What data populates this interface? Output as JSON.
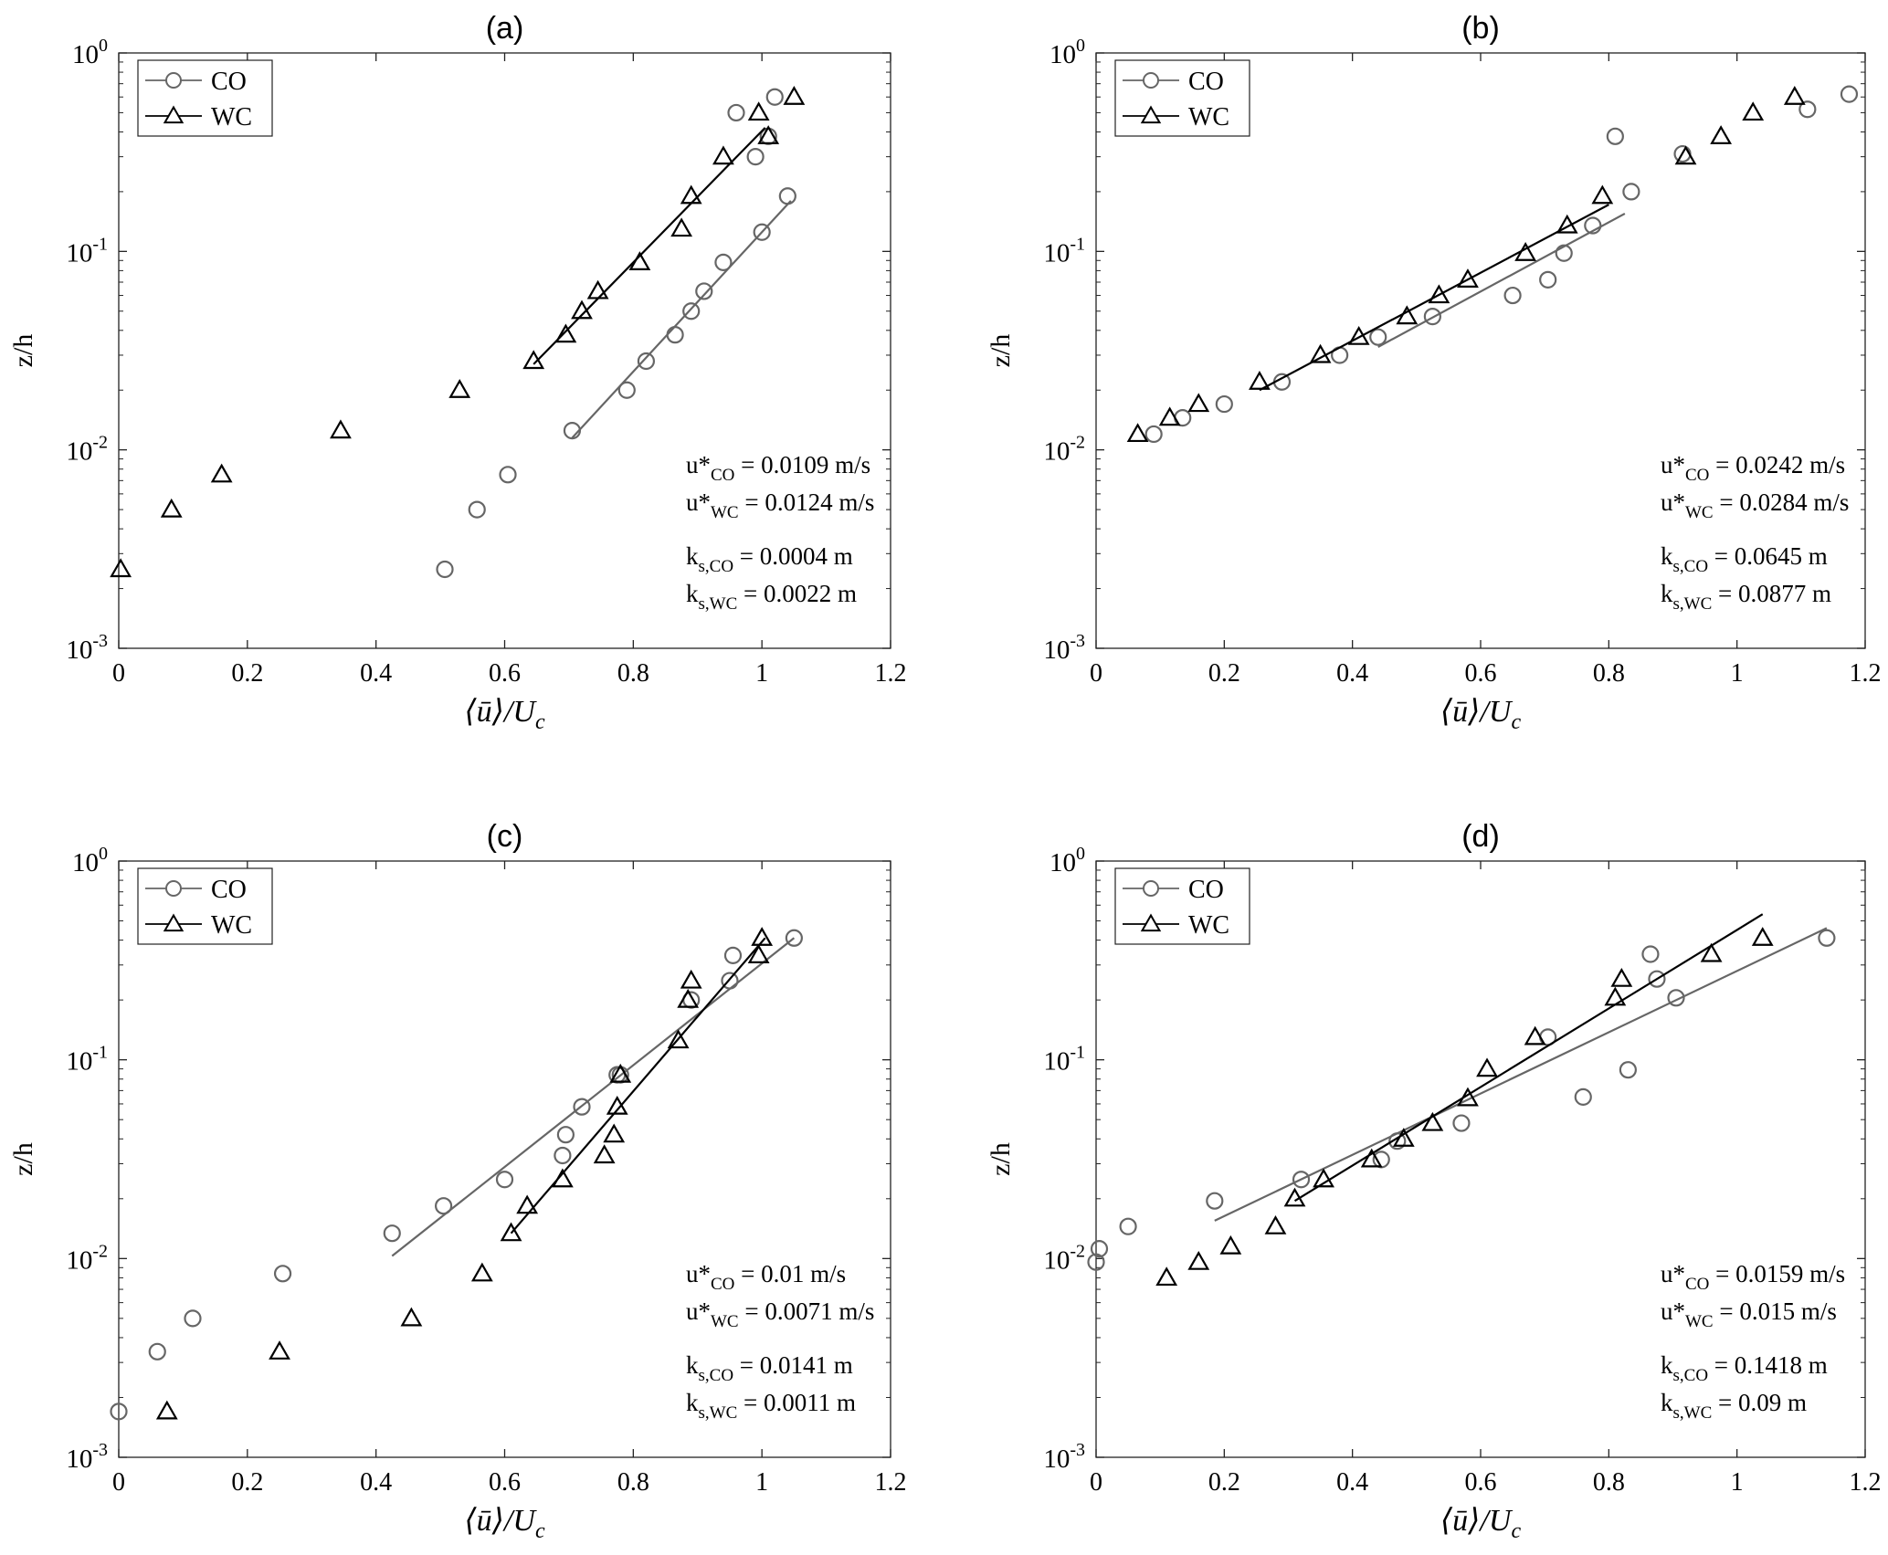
{
  "figure": {
    "panels_label": "four-panel velocity profile figure"
  },
  "chart_data": [
    {
      "type": "scatter",
      "panel_label": "(a)",
      "xlabel_pre": "⟨ū⟩/U",
      "xlabel_sub": "c",
      "ylabel": "z/h",
      "xlim": [
        0,
        1.2
      ],
      "ylim": [
        0.001,
        1
      ],
      "yscale": "log",
      "xticks": [
        "0",
        "0.2",
        "0.4",
        "0.6",
        "0.8",
        "1",
        "1.2"
      ],
      "grid": false,
      "legend_position": "top-left",
      "series": [
        {
          "name": "CO",
          "marker": "circle",
          "color": "#666666",
          "x": [
            0.507,
            0.557,
            0.605,
            0.705,
            0.79,
            0.82,
            0.865,
            0.89,
            0.91,
            0.94,
            0.96,
            0.99,
            1.0,
            1.01,
            1.02,
            1.04
          ],
          "y": [
            0.0025,
            0.005,
            0.0075,
            0.0125,
            0.02,
            0.028,
            0.038,
            0.05,
            0.063,
            0.088,
            0.5,
            0.3,
            0.125,
            0.38,
            0.6,
            0.19
          ],
          "fit": {
            "x": [
              0.705,
              1.045
            ],
            "y": [
              0.0115,
              0.18
            ]
          }
        },
        {
          "name": "WC",
          "marker": "triangle",
          "color": "#000000",
          "x": [
            0.003,
            0.082,
            0.16,
            0.345,
            0.53,
            0.645,
            0.695,
            0.72,
            0.745,
            0.81,
            0.875,
            0.89,
            0.94,
            0.995,
            1.01,
            1.05
          ],
          "y": [
            0.0025,
            0.005,
            0.0075,
            0.0125,
            0.02,
            0.028,
            0.038,
            0.05,
            0.063,
            0.088,
            0.13,
            0.19,
            0.3,
            0.5,
            0.38,
            0.6
          ],
          "fit": {
            "x": [
              0.645,
              1.005
            ],
            "y": [
              0.027,
              0.42
            ]
          }
        }
      ],
      "annotations": [
        {
          "pre": "u*",
          "sub": "CO",
          "post": " = 0.0109 m/s"
        },
        {
          "pre": "u*",
          "sub": "WC",
          "post": " = 0.0124 m/s"
        },
        {
          "pre": "k",
          "sub": "s,CO",
          "post": " = 0.0004 m"
        },
        {
          "pre": "k",
          "sub": "s,WC",
          "post": " = 0.0022 m"
        }
      ]
    },
    {
      "type": "scatter",
      "panel_label": "(b)",
      "xlabel_pre": "⟨ū⟩/U",
      "xlabel_sub": "c",
      "ylabel": "z/h",
      "xlim": [
        0,
        1.2
      ],
      "ylim": [
        0.001,
        1
      ],
      "yscale": "log",
      "xticks": [
        "0",
        "0.2",
        "0.4",
        "0.6",
        "0.8",
        "1",
        "1.2"
      ],
      "grid": false,
      "legend_position": "top-left",
      "series": [
        {
          "name": "CO",
          "marker": "circle",
          "color": "#666666",
          "x": [
            0.09,
            0.135,
            0.2,
            0.29,
            0.38,
            0.44,
            0.525,
            0.65,
            0.705,
            0.73,
            0.775,
            0.81,
            0.835,
            0.915,
            1.11,
            1.175
          ],
          "y": [
            0.012,
            0.0145,
            0.017,
            0.022,
            0.03,
            0.037,
            0.047,
            0.06,
            0.072,
            0.098,
            0.135,
            0.38,
            0.2,
            0.31,
            0.52,
            0.62
          ],
          "fit": {
            "x": [
              0.44,
              0.825
            ],
            "y": [
              0.033,
              0.155
            ]
          }
        },
        {
          "name": "WC",
          "marker": "triangle",
          "color": "#000000",
          "x": [
            0.065,
            0.115,
            0.16,
            0.255,
            0.35,
            0.41,
            0.485,
            0.535,
            0.58,
            0.67,
            0.735,
            0.79,
            0.92,
            0.975,
            1.025,
            1.09
          ],
          "y": [
            0.012,
            0.0145,
            0.017,
            0.022,
            0.03,
            0.037,
            0.047,
            0.06,
            0.072,
            0.098,
            0.135,
            0.19,
            0.3,
            0.38,
            0.5,
            0.6
          ],
          "fit": {
            "x": [
              0.255,
              0.8
            ],
            "y": [
              0.02,
              0.172
            ]
          }
        }
      ],
      "annotations": [
        {
          "pre": "u*",
          "sub": "CO",
          "post": " = 0.0242 m/s"
        },
        {
          "pre": "u*",
          "sub": "WC",
          "post": " = 0.0284 m/s"
        },
        {
          "pre": "k",
          "sub": "s,CO",
          "post": " = 0.0645 m"
        },
        {
          "pre": "k",
          "sub": "s,WC",
          "post": " = 0.0877 m"
        }
      ]
    },
    {
      "type": "scatter",
      "panel_label": "(c)",
      "xlabel_pre": "⟨ū⟩/U",
      "xlabel_sub": "c",
      "ylabel": "z/h",
      "xlim": [
        0,
        1.2
      ],
      "ylim": [
        0.001,
        1
      ],
      "yscale": "log",
      "xticks": [
        "0",
        "0.2",
        "0.4",
        "0.6",
        "0.8",
        "1",
        "1.2"
      ],
      "grid": false,
      "legend_position": "top-left",
      "series": [
        {
          "name": "CO",
          "marker": "circle",
          "color": "#666666",
          "x": [
            0.0,
            0.06,
            0.115,
            0.255,
            0.425,
            0.505,
            0.6,
            0.69,
            0.695,
            0.72,
            0.775,
            0.78,
            0.89,
            0.95,
            0.955,
            1.05
          ],
          "y": [
            0.0017,
            0.0034,
            0.005,
            0.0084,
            0.0134,
            0.0184,
            0.025,
            0.033,
            0.042,
            0.058,
            0.084,
            0.084,
            0.2,
            0.25,
            0.335,
            0.41
          ],
          "fit": {
            "x": [
              0.425,
              1.05
            ],
            "y": [
              0.0103,
              0.41
            ]
          }
        },
        {
          "name": "WC",
          "marker": "triangle",
          "color": "#000000",
          "x": [
            0.075,
            0.25,
            0.455,
            0.565,
            0.61,
            0.635,
            0.69,
            0.755,
            0.77,
            0.775,
            0.78,
            0.87,
            0.885,
            0.89,
            0.995,
            1.0
          ],
          "y": [
            0.0017,
            0.0034,
            0.005,
            0.0084,
            0.0134,
            0.0184,
            0.025,
            0.033,
            0.042,
            0.058,
            0.084,
            0.125,
            0.2,
            0.25,
            0.335,
            0.41
          ],
          "fit": {
            "x": [
              0.61,
              1.005
            ],
            "y": [
              0.0134,
              0.41
            ]
          }
        }
      ],
      "annotations": [
        {
          "pre": "u*",
          "sub": "CO",
          "post": " = 0.01 m/s"
        },
        {
          "pre": "u*",
          "sub": "WC",
          "post": " = 0.0071 m/s"
        },
        {
          "pre": "k",
          "sub": "s,CO",
          "post": " = 0.0141 m"
        },
        {
          "pre": "k",
          "sub": "s,WC",
          "post": " = 0.0011 m"
        }
      ]
    },
    {
      "type": "scatter",
      "panel_label": "(d)",
      "xlabel_pre": "⟨ū⟩/U",
      "xlabel_sub": "c",
      "ylabel": "z/h",
      "xlim": [
        0,
        1.2
      ],
      "ylim": [
        0.001,
        1
      ],
      "yscale": "log",
      "xticks": [
        "0",
        "0.2",
        "0.4",
        "0.6",
        "0.8",
        "1",
        "1.2"
      ],
      "grid": false,
      "legend_position": "top-left",
      "series": [
        {
          "name": "CO",
          "marker": "circle",
          "color": "#666666",
          "x": [
            0.0,
            0.005,
            0.05,
            0.185,
            0.32,
            0.445,
            0.47,
            0.57,
            0.705,
            0.76,
            0.83,
            0.865,
            0.875,
            0.905,
            1.14
          ],
          "y": [
            0.0096,
            0.0112,
            0.0145,
            0.0195,
            0.025,
            0.0315,
            0.039,
            0.048,
            0.13,
            0.065,
            0.089,
            0.34,
            0.255,
            0.205,
            0.41
          ],
          "fit": {
            "x": [
              0.185,
              1.14
            ],
            "y": [
              0.0155,
              0.46
            ]
          }
        },
        {
          "name": "WC",
          "marker": "triangle",
          "color": "#000000",
          "x": [
            0.11,
            0.16,
            0.21,
            0.28,
            0.31,
            0.355,
            0.43,
            0.48,
            0.525,
            0.58,
            0.61,
            0.685,
            0.81,
            0.82,
            0.96,
            1.04
          ],
          "y": [
            0.008,
            0.0096,
            0.0115,
            0.0145,
            0.02,
            0.025,
            0.0315,
            0.04,
            0.048,
            0.064,
            0.09,
            0.13,
            0.205,
            0.255,
            0.34,
            0.41
          ],
          "fit": {
            "x": [
              0.31,
              1.04
            ],
            "y": [
              0.0195,
              0.54
            ]
          }
        }
      ],
      "annotations": [
        {
          "pre": "u*",
          "sub": "CO",
          "post": " = 0.0159 m/s"
        },
        {
          "pre": "u*",
          "sub": "WC",
          "post": " = 0.015 m/s"
        },
        {
          "pre": "k",
          "sub": "s,CO",
          "post": " = 0.1418 m"
        },
        {
          "pre": "k",
          "sub": "s,WC",
          "post": " = 0.09 m"
        }
      ]
    }
  ]
}
